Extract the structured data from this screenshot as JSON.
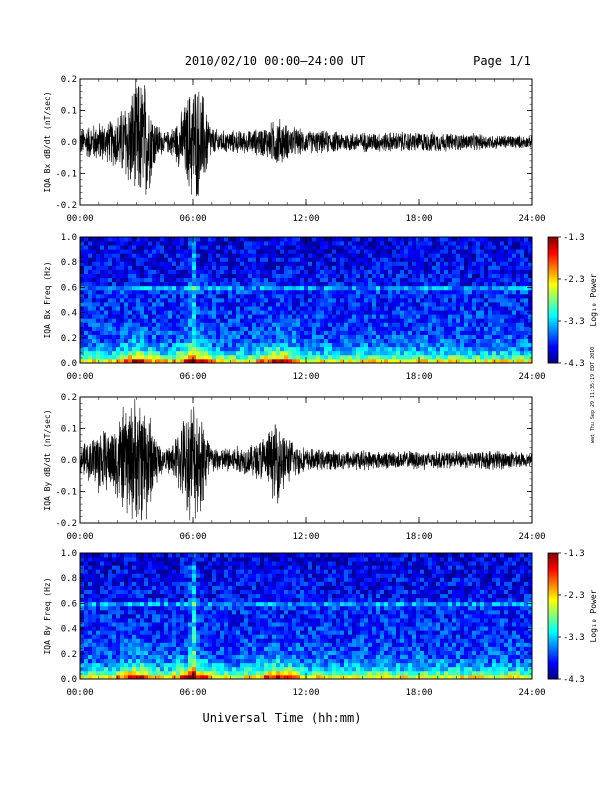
{
  "header": {
    "title": "2010/02/10  00:00–24:00 UT",
    "page": "Page 1/1"
  },
  "side_note": "wat Thu Sep 29 11:35:19 EDT 2010",
  "xlabel": "Universal Time (hh:mm)",
  "colorbar": {
    "label": "Log₁₀ Power",
    "ticks": [
      "-1.3",
      "-2.3",
      "-3.3",
      "-4.3"
    ]
  },
  "chart_data": [
    {
      "type": "line",
      "ylabel": "IQA Bx dB/dt (nT/sec)",
      "ylim": [
        -0.2,
        0.2
      ],
      "yticks": [
        "0.2",
        "0.1",
        "0.0",
        "-0.1",
        "-0.2"
      ],
      "xlim": [
        0,
        24
      ],
      "xticks": [
        "00:00",
        "06:00",
        "12:00",
        "18:00",
        "24:00"
      ],
      "envelope": {
        "hours": [
          0,
          0.5,
          1,
          1.5,
          2,
          2.5,
          3,
          3.5,
          4,
          4.5,
          5,
          5.5,
          6,
          6.5,
          7,
          7.5,
          8,
          9,
          10,
          10.5,
          11,
          12,
          13,
          14,
          15,
          16,
          17,
          18,
          19,
          20,
          21,
          22,
          23,
          24
        ],
        "amplitude": [
          0.05,
          0.06,
          0.07,
          0.07,
          0.1,
          0.15,
          0.22,
          0.22,
          0.08,
          0.03,
          0.06,
          0.12,
          0.22,
          0.18,
          0.05,
          0.04,
          0.04,
          0.04,
          0.06,
          0.09,
          0.06,
          0.04,
          0.04,
          0.035,
          0.035,
          0.035,
          0.035,
          0.035,
          0.035,
          0.03,
          0.03,
          0.025,
          0.025,
          0.02
        ]
      }
    },
    {
      "type": "heatmap",
      "ylabel": "IQA Bx Freq (Hz)",
      "ylim": [
        0,
        1.0
      ],
      "yticks": [
        "1.0",
        "0.8",
        "0.6",
        "0.4",
        "0.2",
        "0.0"
      ],
      "xlim": [
        0,
        24
      ],
      "xticks": [
        "00:00",
        "06:00",
        "12:00",
        "18:00",
        "24:00"
      ],
      "zlim": [
        -4.3,
        -1.3
      ],
      "features": {
        "line_freq": 0.59,
        "burst_hours": [
          3,
          6,
          10.5
        ]
      }
    },
    {
      "type": "line",
      "ylabel": "IQA By dB/dt (nT/sec)",
      "ylim": [
        -0.2,
        0.2
      ],
      "yticks": [
        "0.2",
        "0.1",
        "0.0",
        "-0.1",
        "-0.2"
      ],
      "xlim": [
        0,
        24
      ],
      "xticks": [
        "00:00",
        "06:00",
        "12:00",
        "18:00",
        "24:00"
      ],
      "envelope": {
        "hours": [
          0,
          0.5,
          1,
          1.5,
          2,
          2.5,
          3,
          3.5,
          4,
          4.5,
          5,
          5.5,
          6,
          6.5,
          7,
          7.5,
          8,
          9,
          10,
          10.5,
          11,
          12,
          13,
          14,
          15,
          16,
          17,
          18,
          19,
          20,
          21,
          22,
          23,
          24
        ],
        "amplitude": [
          0.05,
          0.07,
          0.12,
          0.1,
          0.15,
          0.2,
          0.22,
          0.22,
          0.1,
          0.03,
          0.07,
          0.15,
          0.22,
          0.18,
          0.05,
          0.04,
          0.05,
          0.05,
          0.1,
          0.15,
          0.08,
          0.04,
          0.035,
          0.035,
          0.035,
          0.03,
          0.03,
          0.035,
          0.03,
          0.03,
          0.03,
          0.035,
          0.03,
          0.02
        ]
      }
    },
    {
      "type": "heatmap",
      "ylabel": "IQA By Freq (Hz)",
      "ylim": [
        0,
        1.0
      ],
      "yticks": [
        "1.0",
        "0.8",
        "0.6",
        "0.4",
        "0.2",
        "0.0"
      ],
      "xlim": [
        0,
        24
      ],
      "xticks": [
        "00:00",
        "06:00",
        "12:00",
        "18:00",
        "24:00"
      ],
      "zlim": [
        -4.3,
        -1.3
      ],
      "features": {
        "line_freq": 0.59,
        "burst_hours": [
          3,
          6,
          10.5
        ]
      }
    }
  ]
}
